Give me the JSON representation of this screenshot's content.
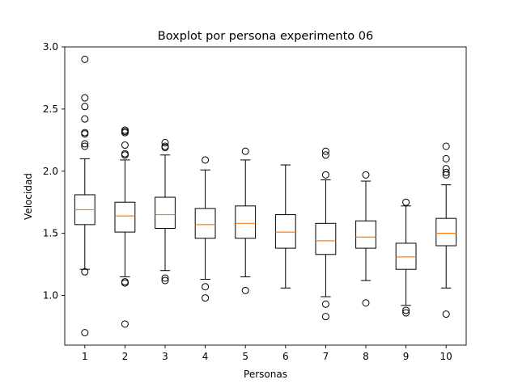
{
  "chart_data": {
    "type": "boxplot",
    "title": "Boxplot por persona experimento 06",
    "xlabel": "Personas",
    "ylabel": "Velocidad",
    "ylim": [
      0.6,
      3.0
    ],
    "yticks": [
      1.0,
      1.5,
      2.0,
      2.5,
      3.0
    ],
    "ytick_labels": [
      "1.0",
      "1.5",
      "2.0",
      "2.5",
      "3.0"
    ],
    "categories": [
      "1",
      "2",
      "3",
      "4",
      "5",
      "6",
      "7",
      "8",
      "9",
      "10"
    ],
    "grid": false,
    "median_color": "#ff7f0e",
    "boxes": [
      {
        "whislo": 1.21,
        "q1": 1.57,
        "med": 1.69,
        "q3": 1.81,
        "whishi": 2.1,
        "fliers": [
          0.7,
          1.19,
          2.2,
          2.22,
          2.3,
          2.31,
          2.42,
          2.52,
          2.59,
          2.9
        ]
      },
      {
        "whislo": 1.15,
        "q1": 1.51,
        "med": 1.64,
        "q3": 1.75,
        "whishi": 2.09,
        "fliers": [
          0.77,
          1.1,
          1.11,
          2.13,
          2.14,
          2.21,
          2.31,
          2.32,
          2.33
        ]
      },
      {
        "whislo": 1.2,
        "q1": 1.54,
        "med": 1.65,
        "q3": 1.79,
        "whishi": 2.13,
        "fliers": [
          1.12,
          1.14,
          2.19,
          2.2,
          2.23
        ]
      },
      {
        "whislo": 1.13,
        "q1": 1.46,
        "med": 1.57,
        "q3": 1.7,
        "whishi": 2.01,
        "fliers": [
          0.98,
          1.07,
          2.09
        ]
      },
      {
        "whislo": 1.15,
        "q1": 1.46,
        "med": 1.58,
        "q3": 1.72,
        "whishi": 2.09,
        "fliers": [
          1.04,
          2.16
        ]
      },
      {
        "whislo": 1.06,
        "q1": 1.38,
        "med": 1.51,
        "q3": 1.65,
        "whishi": 2.05,
        "fliers": []
      },
      {
        "whislo": 0.99,
        "q1": 1.33,
        "med": 1.44,
        "q3": 1.58,
        "whishi": 1.93,
        "fliers": [
          0.83,
          0.93,
          1.97,
          2.13,
          2.16
        ]
      },
      {
        "whislo": 1.12,
        "q1": 1.38,
        "med": 1.47,
        "q3": 1.6,
        "whishi": 1.92,
        "fliers": [
          0.94,
          1.97
        ]
      },
      {
        "whislo": 0.92,
        "q1": 1.21,
        "med": 1.31,
        "q3": 1.42,
        "whishi": 1.72,
        "fliers": [
          0.86,
          0.88,
          1.75
        ]
      },
      {
        "whislo": 1.06,
        "q1": 1.4,
        "med": 1.5,
        "q3": 1.62,
        "whishi": 1.89,
        "fliers": [
          0.85,
          1.97,
          1.99,
          2.02,
          2.1,
          2.2
        ]
      }
    ]
  }
}
